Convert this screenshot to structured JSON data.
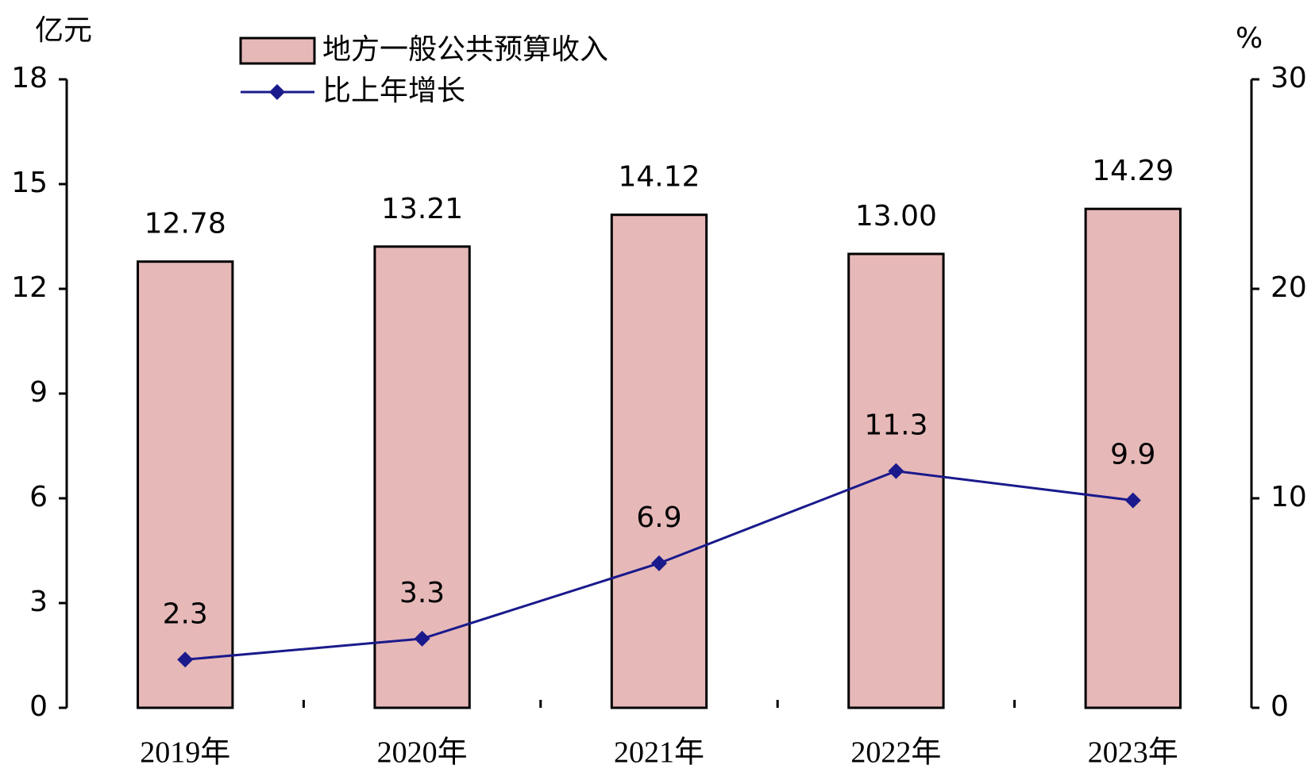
{
  "chart_data": {
    "type": "bar",
    "y_label": "亿元",
    "y2_label": "%",
    "categories": [
      "2019年",
      "2020年",
      "2021年",
      "2022年",
      "2023年"
    ],
    "series": [
      {
        "name": "地方一般公共预算收入",
        "type": "bar",
        "color": "#e6b8b8",
        "values": [
          12.78,
          13.21,
          14.12,
          13.0,
          14.29
        ],
        "value_labels": [
          "12.78",
          "13.21",
          "14.12",
          "13.00",
          "14.29"
        ]
      },
      {
        "name": "比上年增长",
        "type": "line",
        "axis": "y2",
        "color": "#1a1a8c",
        "values": [
          2.3,
          3.3,
          6.9,
          11.3,
          9.9
        ]
      }
    ],
    "ylim": [
      0,
      18
    ],
    "yticks": [
      0,
      3,
      6,
      9,
      12,
      15,
      18
    ],
    "y2lim": [
      0,
      30
    ],
    "y2ticks": [
      0,
      10,
      20,
      30
    ],
    "grid": false
  }
}
